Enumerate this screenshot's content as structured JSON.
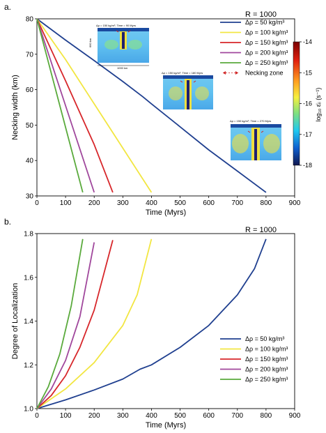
{
  "chart_data": [
    {
      "panel_label": "a.",
      "type": "line",
      "title": "R = 1000",
      "xlabel": "Time (Myrs)",
      "ylabel": "Necking width (km)",
      "xlim": [
        0,
        900
      ],
      "ylim": [
        30,
        80
      ],
      "xticks": [
        "0",
        "100",
        "200",
        "300",
        "400",
        "500",
        "600",
        "700",
        "800",
        "900"
      ],
      "yticks": [
        "30",
        "40",
        "50",
        "60",
        "70",
        "80"
      ],
      "legend_position": "top-right",
      "series": [
        {
          "name": "Δρ = 50 kg/m³",
          "color": "#1f3f8f",
          "x": [
            0,
            100,
            200,
            300,
            370,
            400,
            500,
            600,
            700,
            800
          ],
          "y": [
            80,
            74,
            68.2,
            62.3,
            58,
            56,
            49.5,
            43,
            37,
            31
          ]
        },
        {
          "name": "Δρ = 100 kg/m³",
          "color": "#f2e641",
          "x": [
            0,
            100,
            200,
            300,
            400
          ],
          "y": [
            80,
            68.5,
            56,
            43.5,
            31
          ]
        },
        {
          "name": "Δρ = 150 kg/m³",
          "color": "#d7262a",
          "x": [
            0,
            100,
            200,
            265
          ],
          "y": [
            80,
            62.5,
            44.5,
            31
          ]
        },
        {
          "name": "Δρ = 200 kg/m³",
          "color": "#a0479c",
          "x": [
            0,
            100,
            200
          ],
          "y": [
            80,
            55.5,
            31
          ]
        },
        {
          "name": "Δρ = 250 kg/m³",
          "color": "#5aaa3c",
          "x": [
            0,
            80,
            160
          ],
          "y": [
            80,
            55.5,
            31
          ]
        }
      ],
      "extra_legend": "Necking zone",
      "colorbar": {
        "label": "log₁₀ ε̇ᵢᵢ (s⁻¹)",
        "ticks": [
          "-14",
          "-15",
          "-16",
          "-17",
          "-18"
        ]
      },
      "insets": [
        {
          "caption": "Δρ = 150 kg/m³, Time = 90 Myrs",
          "depth_label": "660 km",
          "width_label": "1000 km"
        },
        {
          "caption": "Δρ = 150 kg/m³, Time = 180 Myrs"
        },
        {
          "caption": "Δρ = 150 kg/m³, Time = 270 Myrs"
        }
      ]
    },
    {
      "panel_label": "b.",
      "type": "line",
      "title": "R = 1000",
      "xlabel": "Time (Myrs)",
      "ylabel": "Degree of Localization",
      "xlim": [
        0,
        900
      ],
      "ylim": [
        1.0,
        1.8
      ],
      "xticks": [
        "0",
        "100",
        "200",
        "300",
        "400",
        "500",
        "600",
        "700",
        "800",
        "900"
      ],
      "yticks": [
        "1.0",
        "1.2",
        "1.4",
        "1.6",
        "1.8"
      ],
      "legend_position": "bottom-right",
      "series": [
        {
          "name": "Δρ = 50 kg/m³",
          "color": "#1f3f8f",
          "x": [
            0,
            100,
            200,
            300,
            360,
            400,
            500,
            600,
            700,
            760,
            800
          ],
          "y": [
            1.0,
            1.04,
            1.085,
            1.135,
            1.18,
            1.2,
            1.28,
            1.38,
            1.52,
            1.64,
            1.775
          ]
        },
        {
          "name": "Δρ = 100 kg/m³",
          "color": "#f2e641",
          "x": [
            0,
            100,
            200,
            300,
            350,
            400
          ],
          "y": [
            1.0,
            1.09,
            1.21,
            1.38,
            1.52,
            1.775
          ]
        },
        {
          "name": "Δρ = 150 kg/m³",
          "color": "#d7262a",
          "x": [
            0,
            50,
            100,
            150,
            200,
            265
          ],
          "y": [
            1.0,
            1.06,
            1.15,
            1.28,
            1.45,
            1.77
          ]
        },
        {
          "name": "Δρ = 200 kg/m³",
          "color": "#a0479c",
          "x": [
            0,
            50,
            100,
            150,
            200
          ],
          "y": [
            1.0,
            1.09,
            1.22,
            1.42,
            1.76
          ]
        },
        {
          "name": "Δρ = 250 kg/m³",
          "color": "#5aaa3c",
          "x": [
            0,
            40,
            80,
            120,
            160
          ],
          "y": [
            1.0,
            1.1,
            1.25,
            1.47,
            1.775
          ]
        }
      ]
    }
  ]
}
